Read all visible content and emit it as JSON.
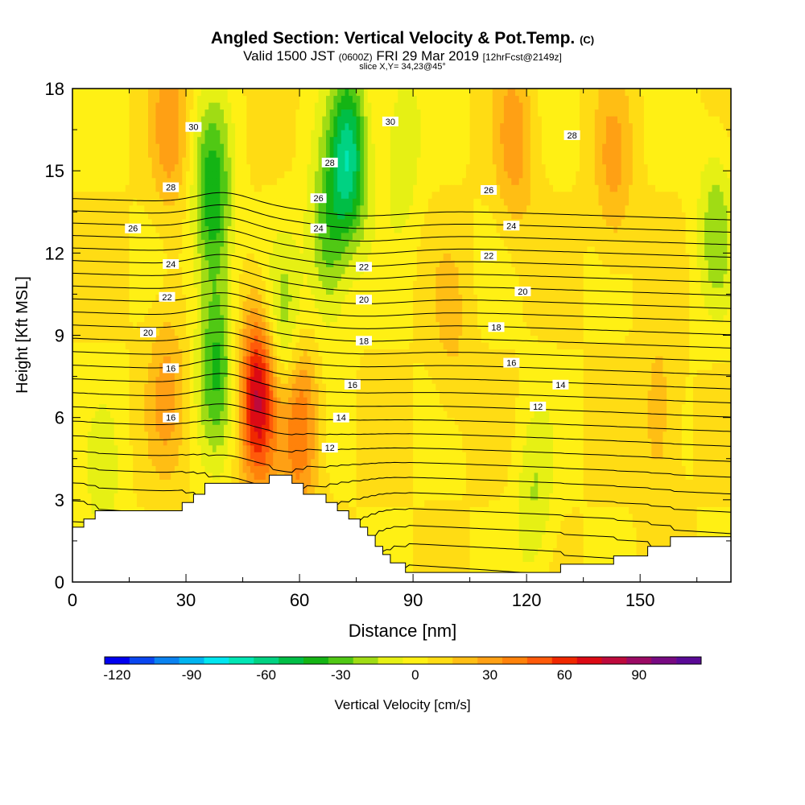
{
  "header": {
    "title_main": "Angled Section: Vertical Velocity & Pot.Temp.",
    "title_units": "(C)",
    "subtitle_valid": "Valid 1500 JST",
    "subtitle_utc": "(0600Z)",
    "subtitle_date": "FRI 29 Mar 2019",
    "subtitle_fcst": "[12hrFcst@2149z]",
    "slice_info": "slice X,Y= 34,23@45°"
  },
  "chart_data": {
    "type": "heatmap",
    "xlabel": "Distance [nm]",
    "ylabel": "Height [Kft MSL]",
    "xlim": [
      0,
      174
    ],
    "ylim": [
      0,
      18
    ],
    "x_ticks": [
      0,
      30,
      60,
      90,
      120,
      150
    ],
    "y_ticks": [
      0,
      3,
      6,
      9,
      12,
      15,
      18
    ],
    "colorbar": {
      "label": "Vertical Velocity [cm/s]",
      "range": [
        -125,
        115
      ],
      "tick_values": [
        -120,
        -90,
        -60,
        -30,
        0,
        30,
        60,
        90
      ],
      "colors": [
        "#0000f0",
        "#0a46f0",
        "#0a82f0",
        "#00b4f0",
        "#00e6f0",
        "#00e6b4",
        "#00d282",
        "#00be46",
        "#14b414",
        "#50c814",
        "#a0dc14",
        "#e6f014",
        "#fff014",
        "#ffdc14",
        "#ffbe14",
        "#ffa014",
        "#ff820a",
        "#ff5a0a",
        "#f02800",
        "#dc0a14",
        "#be0a3c",
        "#9b0a64",
        "#780a82",
        "#5a0a96"
      ]
    },
    "velocity_features": [
      {
        "x": 26,
        "z": 16.5,
        "w": 25,
        "name": "upper-left updraft"
      },
      {
        "x": 25,
        "z": 7,
        "w": 22
      },
      {
        "x": 37,
        "z": 14,
        "w": -50
      },
      {
        "x": 38,
        "z": 8,
        "w": -40
      },
      {
        "x": 49,
        "z": 6.8,
        "w": 70
      },
      {
        "x": 56,
        "z": 9,
        "w": -30
      },
      {
        "x": 60,
        "z": 5.8,
        "w": 45
      },
      {
        "x": 73,
        "z": 15.5,
        "w": -65
      },
      {
        "x": 67,
        "z": 12.5,
        "w": -35
      },
      {
        "x": 87,
        "z": 16,
        "w": -20
      },
      {
        "x": 117,
        "z": 16,
        "w": 25
      },
      {
        "x": 143,
        "z": 15,
        "w": 22
      },
      {
        "x": 170,
        "z": 13,
        "w": -25
      },
      {
        "x": 122,
        "z": 3,
        "w": -20
      },
      {
        "x": 155,
        "z": 6,
        "w": 18
      },
      {
        "x": 8,
        "z": 3,
        "w": -15
      },
      {
        "x": 100,
        "z": 9,
        "w": 12
      }
    ],
    "terrain": [
      [
        0,
        2.0
      ],
      [
        3,
        2.0
      ],
      [
        3,
        2.3
      ],
      [
        6,
        2.3
      ],
      [
        6,
        2.6
      ],
      [
        29,
        2.6
      ],
      [
        29,
        2.9
      ],
      [
        32,
        2.9
      ],
      [
        32,
        3.2
      ],
      [
        35,
        3.2
      ],
      [
        35,
        3.6
      ],
      [
        52,
        3.6
      ],
      [
        52,
        3.9
      ],
      [
        58,
        3.9
      ],
      [
        58,
        3.6
      ],
      [
        61,
        3.6
      ],
      [
        61,
        3.2
      ],
      [
        67,
        3.2
      ],
      [
        67,
        2.9
      ],
      [
        70,
        2.9
      ],
      [
        70,
        2.6
      ],
      [
        73,
        2.6
      ],
      [
        73,
        2.3
      ],
      [
        76,
        2.3
      ],
      [
        76,
        2.0
      ],
      [
        78,
        2.0
      ],
      [
        78,
        1.7
      ],
      [
        80,
        1.7
      ],
      [
        80,
        1.3
      ],
      [
        82,
        1.3
      ],
      [
        82,
        1.0
      ],
      [
        84,
        1.0
      ],
      [
        84,
        0.7
      ],
      [
        88,
        0.7
      ],
      [
        88,
        0.35
      ],
      [
        129,
        0.35
      ],
      [
        129,
        0.65
      ],
      [
        143,
        0.65
      ],
      [
        143,
        0.95
      ],
      [
        152,
        0.95
      ],
      [
        152,
        1.3
      ],
      [
        158,
        1.3
      ],
      [
        158,
        1.65
      ],
      [
        174,
        1.65
      ]
    ],
    "theta_contours": {
      "levels": [
        6,
        7,
        8,
        9,
        10,
        11,
        12,
        13,
        14,
        15,
        16,
        17,
        18,
        19,
        20,
        21,
        22,
        23,
        24,
        25,
        26,
        27,
        28,
        29,
        30,
        31,
        32
      ],
      "labels": [
        {
          "text": "30",
          "x": 32,
          "z": 16.6
        },
        {
          "text": "28",
          "x": 26,
          "z": 14.4
        },
        {
          "text": "26",
          "x": 16,
          "z": 12.9
        },
        {
          "text": "24",
          "x": 26,
          "z": 11.6
        },
        {
          "text": "22",
          "x": 25,
          "z": 10.4
        },
        {
          "text": "20",
          "x": 20,
          "z": 9.1
        },
        {
          "text": "16",
          "x": 26,
          "z": 7.8
        },
        {
          "text": "16",
          "x": 26,
          "z": 6.0
        },
        {
          "text": "30",
          "x": 84,
          "z": 16.8
        },
        {
          "text": "28",
          "x": 68,
          "z": 15.3
        },
        {
          "text": "26",
          "x": 65,
          "z": 14.0
        },
        {
          "text": "24",
          "x": 65,
          "z": 12.9
        },
        {
          "text": "22",
          "x": 77,
          "z": 11.5
        },
        {
          "text": "20",
          "x": 77,
          "z": 10.3
        },
        {
          "text": "18",
          "x": 77,
          "z": 8.8
        },
        {
          "text": "16",
          "x": 74,
          "z": 7.2
        },
        {
          "text": "14",
          "x": 71,
          "z": 6.0
        },
        {
          "text": "12",
          "x": 68,
          "z": 4.9
        },
        {
          "text": "28",
          "x": 132,
          "z": 16.3
        },
        {
          "text": "26",
          "x": 110,
          "z": 14.3
        },
        {
          "text": "24",
          "x": 116,
          "z": 13.0
        },
        {
          "text": "22",
          "x": 110,
          "z": 11.9
        },
        {
          "text": "20",
          "x": 119,
          "z": 10.6
        },
        {
          "text": "18",
          "x": 112,
          "z": 9.3
        },
        {
          "text": "16",
          "x": 116,
          "z": 8.0
        },
        {
          "text": "14",
          "x": 129,
          "z": 7.2
        },
        {
          "text": "12",
          "x": 123,
          "z": 6.4
        }
      ]
    }
  }
}
